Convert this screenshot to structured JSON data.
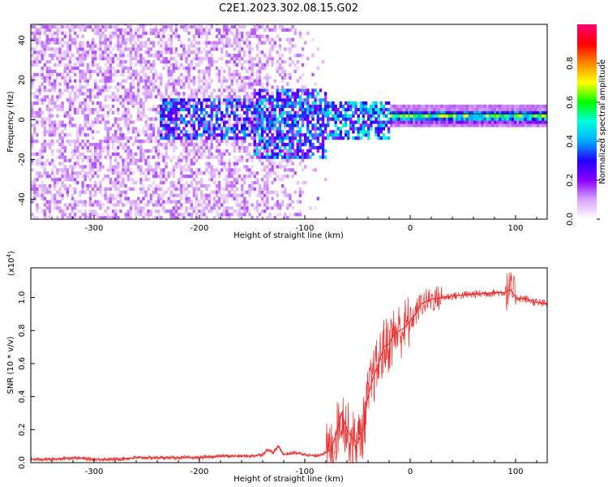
{
  "title": "C2E1.2023.302.08.15.G02",
  "chart_data": [
    {
      "type": "heatmap",
      "xlabel": "Height of straight line (km)",
      "ylabel": "Frequency (Hz)",
      "xlim": [
        -360,
        130
      ],
      "ylim": [
        -50,
        48
      ],
      "xticks": [
        -300,
        -200,
        -100,
        0,
        100
      ],
      "yticks": [
        -40,
        -20,
        0,
        20,
        40
      ],
      "colorbar": {
        "label": "Normalized spectral amplitude",
        "range": [
          0,
          1
        ],
        "ticks": [
          "0.0",
          "0.2",
          "0.4",
          "0.6",
          "0.8"
        ],
        "colormap": [
          "#ffffff",
          "#d9a6ff",
          "#8a00ff",
          "#2200ff",
          "#00aaff",
          "#00ffdd",
          "#00ff00",
          "#ffff00",
          "#ff8800",
          "#ff0000",
          "#ff0077"
        ]
      },
      "features": [
        {
          "x_range": [
            -360,
            -150
          ],
          "freq_range": [
            -50,
            48
          ],
          "amplitude": 0.12,
          "description": "broadband noise"
        },
        {
          "x_range": [
            -150,
            -80
          ],
          "freq_range": [
            -20,
            15
          ],
          "amplitude": 0.3
        },
        {
          "x_range": [
            -80,
            -20
          ],
          "freq_range": [
            -10,
            8
          ],
          "amplitude": 0.35
        },
        {
          "x_range": [
            -20,
            130
          ],
          "center_freq": 1,
          "width_hz": 3,
          "amplitude": 0.7
        }
      ]
    },
    {
      "type": "line",
      "xlabel": "Height of straight line (km)",
      "ylabel": "SNR (10 * v/v)",
      "y_multiplier": "(x10",
      "y_multiplier_exp": "4",
      "y_multiplier_close": ")",
      "xlim": [
        -360,
        130
      ],
      "ylim": [
        0,
        1.18
      ],
      "xticks": [
        -300,
        -200,
        -100,
        0,
        100
      ],
      "yticks": [
        "0.0",
        "0.2",
        "0.4",
        "0.6",
        "0.8",
        "1.0"
      ],
      "series": [
        {
          "color": "#e83030",
          "x": [
            -360,
            -340,
            -320,
            -300,
            -280,
            -260,
            -240,
            -220,
            -200,
            -180,
            -160,
            -150,
            -140,
            -135,
            -130,
            -125,
            -120,
            -110,
            -100,
            -90,
            -80,
            -75,
            -70,
            -65,
            -60,
            -55,
            -50,
            -45,
            -40,
            -35,
            -30,
            -25,
            -20,
            -15,
            -10,
            -5,
            0,
            5,
            10,
            20,
            30,
            40,
            60,
            80,
            90,
            95,
            100,
            110,
            120,
            130
          ],
          "y": [
            0.02,
            0.02,
            0.03,
            0.02,
            0.02,
            0.03,
            0.03,
            0.03,
            0.03,
            0.04,
            0.04,
            0.04,
            0.05,
            0.08,
            0.06,
            0.1,
            0.05,
            0.06,
            0.05,
            0.04,
            0.06,
            0.08,
            0.18,
            0.3,
            0.2,
            0.15,
            0.12,
            0.2,
            0.4,
            0.52,
            0.6,
            0.7,
            0.72,
            0.78,
            0.8,
            0.82,
            0.86,
            0.9,
            0.96,
            0.99,
            1.0,
            1.01,
            1.02,
            1.03,
            1.03,
            1.05,
            1.0,
            0.99,
            0.97,
            0.96
          ]
        }
      ]
    }
  ]
}
